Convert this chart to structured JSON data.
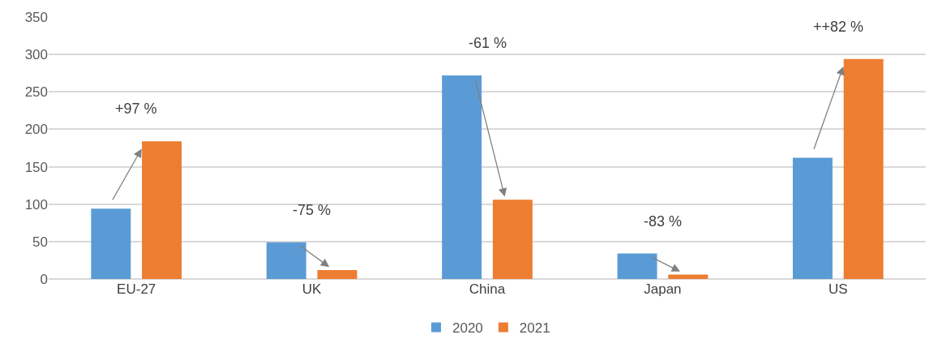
{
  "chart_data": {
    "type": "bar",
    "categories": [
      "EU-27",
      "UK",
      "China",
      "Japan",
      "US"
    ],
    "series": [
      {
        "name": "2020",
        "color": "#5b9bd5",
        "values": [
          94,
          49,
          272,
          34,
          162
        ]
      },
      {
        "name": "2021",
        "color": "#ed7d31",
        "values": [
          184,
          12,
          106,
          6,
          294
        ]
      }
    ],
    "ylim": [
      0,
      350
    ],
    "yticks": [
      0,
      50,
      100,
      150,
      200,
      250,
      300,
      350
    ],
    "grid": "y",
    "legend": "bottom",
    "annotations": [
      "+97 %",
      "-75 %",
      "-61 %",
      "-83 %",
      "++82 %"
    ]
  }
}
